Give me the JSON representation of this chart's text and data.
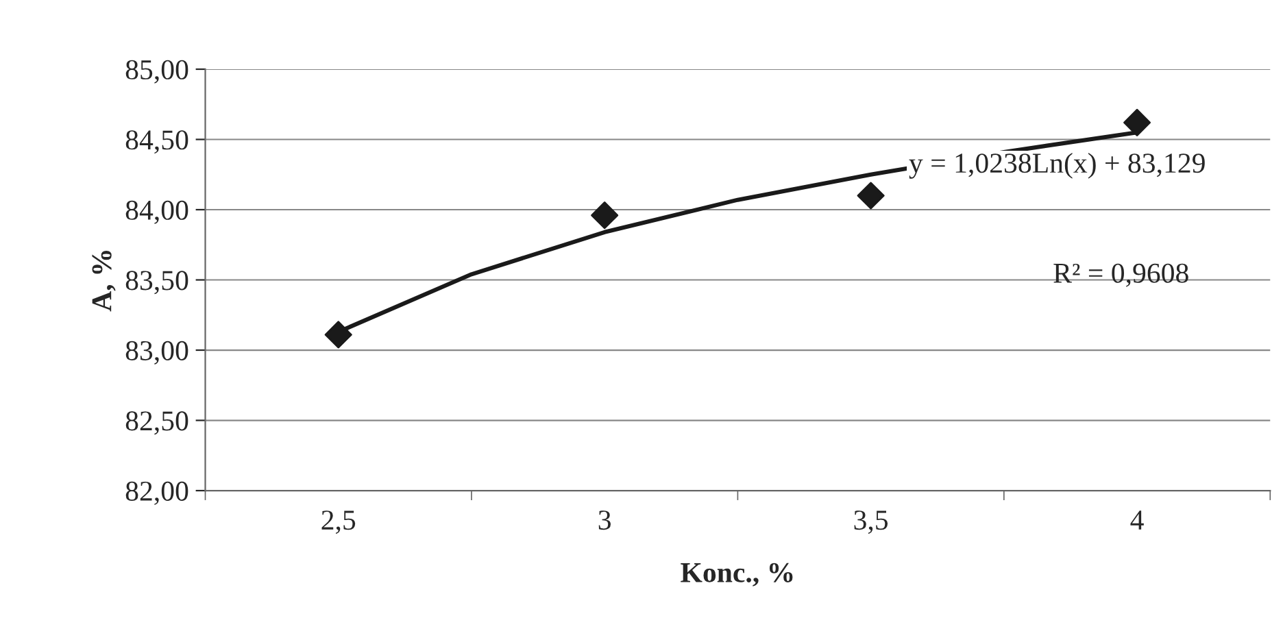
{
  "chart_data": {
    "type": "scatter",
    "xlabel": "Konc., %",
    "ylabel": "A, %",
    "x": [
      2.5,
      3,
      3.5,
      4
    ],
    "series": [
      {
        "color": "#1a1a1a",
        "values": [
          83.11,
          83.96,
          84.1,
          84.62
        ],
        "marker": "diamond"
      },
      {
        "type": "line",
        "color": "#1a1a1a",
        "x": [
          2.5,
          2.75,
          3,
          3.25,
          3.5,
          3.75,
          4
        ],
        "values": [
          83.13,
          83.54,
          83.84,
          84.07,
          84.25,
          84.41,
          84.55
        ],
        "marker": "none",
        "line_style": "solid"
      }
    ],
    "xlim": [
      2.25,
      4.25
    ],
    "xticks": [
      {
        "value": 2.5,
        "label": "2,5"
      },
      3,
      {
        "value": 3.5,
        "label": "3,5"
      },
      4,
      {
        "value": 2.25,
        "label": null
      },
      {
        "value": 2.75,
        "label": null
      },
      {
        "value": 3.25,
        "label": null
      },
      {
        "value": 3.75,
        "label": null
      },
      {
        "value": 4.25,
        "label": null
      }
    ],
    "ylim": [
      82,
      85
    ],
    "yticks": [
      {
        "value": 82,
        "label": "82,00"
      },
      {
        "value": 82.5,
        "label": "82,50"
      },
      {
        "value": 83,
        "label": "83,00"
      },
      {
        "value": 83.5,
        "label": "83,50"
      },
      {
        "value": 84,
        "label": "84,00"
      },
      {
        "value": 84.5,
        "label": "84,50"
      },
      {
        "value": 85,
        "label": "85,00"
      }
    ],
    "grid": "y",
    "annotations": [
      {
        "text": "y = 1,0238Ln(x) + 83,129",
        "x": 3.75,
        "y": 84.41
      },
      "R² = 0,9608"
    ]
  }
}
